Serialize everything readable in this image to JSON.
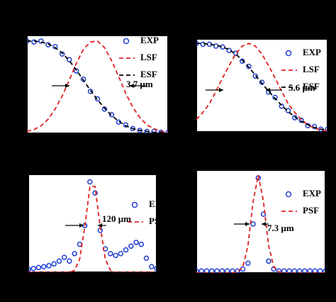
{
  "chart_data": [
    {
      "type": "line",
      "xlim": [
        0,
        1
      ],
      "ylim": [
        0,
        1.05
      ],
      "annotation": "3.7 μm",
      "x": [
        0,
        0.05,
        0.1,
        0.15,
        0.2,
        0.25,
        0.3,
        0.35,
        0.4,
        0.45,
        0.5,
        0.55,
        0.6,
        0.65,
        0.7,
        0.75,
        0.8,
        0.85,
        0.9,
        0.95,
        1
      ],
      "series": [
        {
          "name": "EXP",
          "color": "#1f3fd0",
          "style": "scatter",
          "values": [
            0.99,
            0.98,
            0.99,
            0.95,
            0.93,
            0.85,
            0.79,
            0.67,
            0.58,
            0.45,
            0.37,
            0.26,
            0.2,
            0.12,
            0.09,
            0.05,
            0.03,
            0.02,
            0.02,
            0.01,
            0.01
          ]
        },
        {
          "name": "LSF",
          "color": "#e02020",
          "style": "dashed",
          "values": [
            0.02,
            0.04,
            0.08,
            0.15,
            0.26,
            0.4,
            0.57,
            0.75,
            0.9,
            0.98,
            0.99,
            0.92,
            0.78,
            0.61,
            0.43,
            0.28,
            0.17,
            0.09,
            0.05,
            0.02,
            0.01
          ]
        },
        {
          "name": "ESF",
          "color": "#000000",
          "style": "dashed",
          "values": [
            0.99,
            0.99,
            0.98,
            0.96,
            0.92,
            0.86,
            0.78,
            0.68,
            0.57,
            0.46,
            0.36,
            0.27,
            0.19,
            0.13,
            0.08,
            0.05,
            0.03,
            0.02,
            0.01,
            0.01,
            0
          ]
        }
      ]
    },
    {
      "type": "line",
      "xlim": [
        0,
        1
      ],
      "ylim": [
        0,
        1.05
      ],
      "annotation": "5.6 μm",
      "x": [
        0,
        0.05,
        0.1,
        0.15,
        0.2,
        0.25,
        0.3,
        0.35,
        0.4,
        0.45,
        0.5,
        0.55,
        0.6,
        0.65,
        0.7,
        0.75,
        0.8,
        0.85,
        0.9,
        0.95,
        1
      ],
      "series": [
        {
          "name": "EXP",
          "color": "#1f3fd0",
          "style": "scatter",
          "values": [
            1,
            0.99,
            0.99,
            0.97,
            0.96,
            0.92,
            0.89,
            0.8,
            0.74,
            0.63,
            0.56,
            0.45,
            0.39,
            0.29,
            0.24,
            0.16,
            0.13,
            0.07,
            0.06,
            0.03,
            0.03
          ]
        },
        {
          "name": "LSF",
          "color": "#e02020",
          "style": "dashed",
          "values": [
            0.14,
            0.22,
            0.32,
            0.46,
            0.61,
            0.75,
            0.88,
            0.97,
            1,
            0.97,
            0.88,
            0.75,
            0.61,
            0.46,
            0.32,
            0.22,
            0.14,
            0.08,
            0.04,
            0.02,
            0.01
          ]
        },
        {
          "name": "ESF",
          "color": "#000000",
          "style": "dashed",
          "values": [
            1,
            1,
            0.99,
            0.98,
            0.96,
            0.93,
            0.88,
            0.81,
            0.73,
            0.64,
            0.55,
            0.46,
            0.38,
            0.3,
            0.23,
            0.17,
            0.12,
            0.08,
            0.05,
            0.03,
            0.02
          ]
        }
      ]
    },
    {
      "type": "line",
      "xlim": [
        0,
        1
      ],
      "ylim": [
        0,
        1.05
      ],
      "annotation": "120 μm",
      "x": [
        0,
        0.04,
        0.08,
        0.12,
        0.16,
        0.2,
        0.24,
        0.28,
        0.32,
        0.36,
        0.4,
        0.44,
        0.48,
        0.52,
        0.56,
        0.6,
        0.64,
        0.68,
        0.72,
        0.76,
        0.8,
        0.84,
        0.88,
        0.92,
        0.96,
        1
      ],
      "series": [
        {
          "name": "EXP",
          "color": "#1f3fd0",
          "style": "scatter",
          "values": [
            0.03,
            0.04,
            0.05,
            0.06,
            0.07,
            0.09,
            0.12,
            0.16,
            0.12,
            0.2,
            0.3,
            0.5,
            0.97,
            0.85,
            0.45,
            0.25,
            0.2,
            0.18,
            0.2,
            0.24,
            0.28,
            0.32,
            0.3,
            0.15,
            0.06,
            0.04
          ]
        },
        {
          "name": "PSF",
          "color": "#e02020",
          "style": "dashed",
          "values": [
            0,
            0,
            0,
            0,
            0,
            0,
            0,
            0,
            0,
            0.02,
            0.14,
            0.49,
            0.92,
            0.92,
            0.49,
            0.14,
            0.02,
            0,
            0,
            0,
            0,
            0,
            0,
            0,
            0,
            0
          ]
        }
      ]
    },
    {
      "type": "line",
      "xlim": [
        0,
        1
      ],
      "ylim": [
        0,
        1.05
      ],
      "annotation": "7.3 μm",
      "x": [
        0,
        0.04,
        0.08,
        0.12,
        0.16,
        0.2,
        0.24,
        0.28,
        0.32,
        0.36,
        0.4,
        0.44,
        0.48,
        0.52,
        0.56,
        0.6,
        0.64,
        0.68,
        0.72,
        0.76,
        0.8,
        0.84,
        0.88,
        0.92,
        0.96,
        1
      ],
      "series": [
        {
          "name": "EXP",
          "color": "#1f3fd0",
          "style": "scatter",
          "values": [
            0.02,
            0.02,
            0.02,
            0.02,
            0.02,
            0.02,
            0.02,
            0.02,
            0.02,
            0.04,
            0.1,
            0.5,
            0.97,
            0.6,
            0.12,
            0.04,
            0.02,
            0.02,
            0.02,
            0.02,
            0.02,
            0.02,
            0.02,
            0.02,
            0.02,
            0.02
          ]
        },
        {
          "name": "PSF",
          "color": "#e02020",
          "style": "dashed",
          "values": [
            0,
            0,
            0,
            0,
            0,
            0,
            0,
            0,
            0.01,
            0.06,
            0.28,
            0.73,
            1,
            0.73,
            0.28,
            0.06,
            0.01,
            0,
            0,
            0,
            0,
            0,
            0,
            0,
            0,
            0
          ]
        }
      ]
    }
  ]
}
